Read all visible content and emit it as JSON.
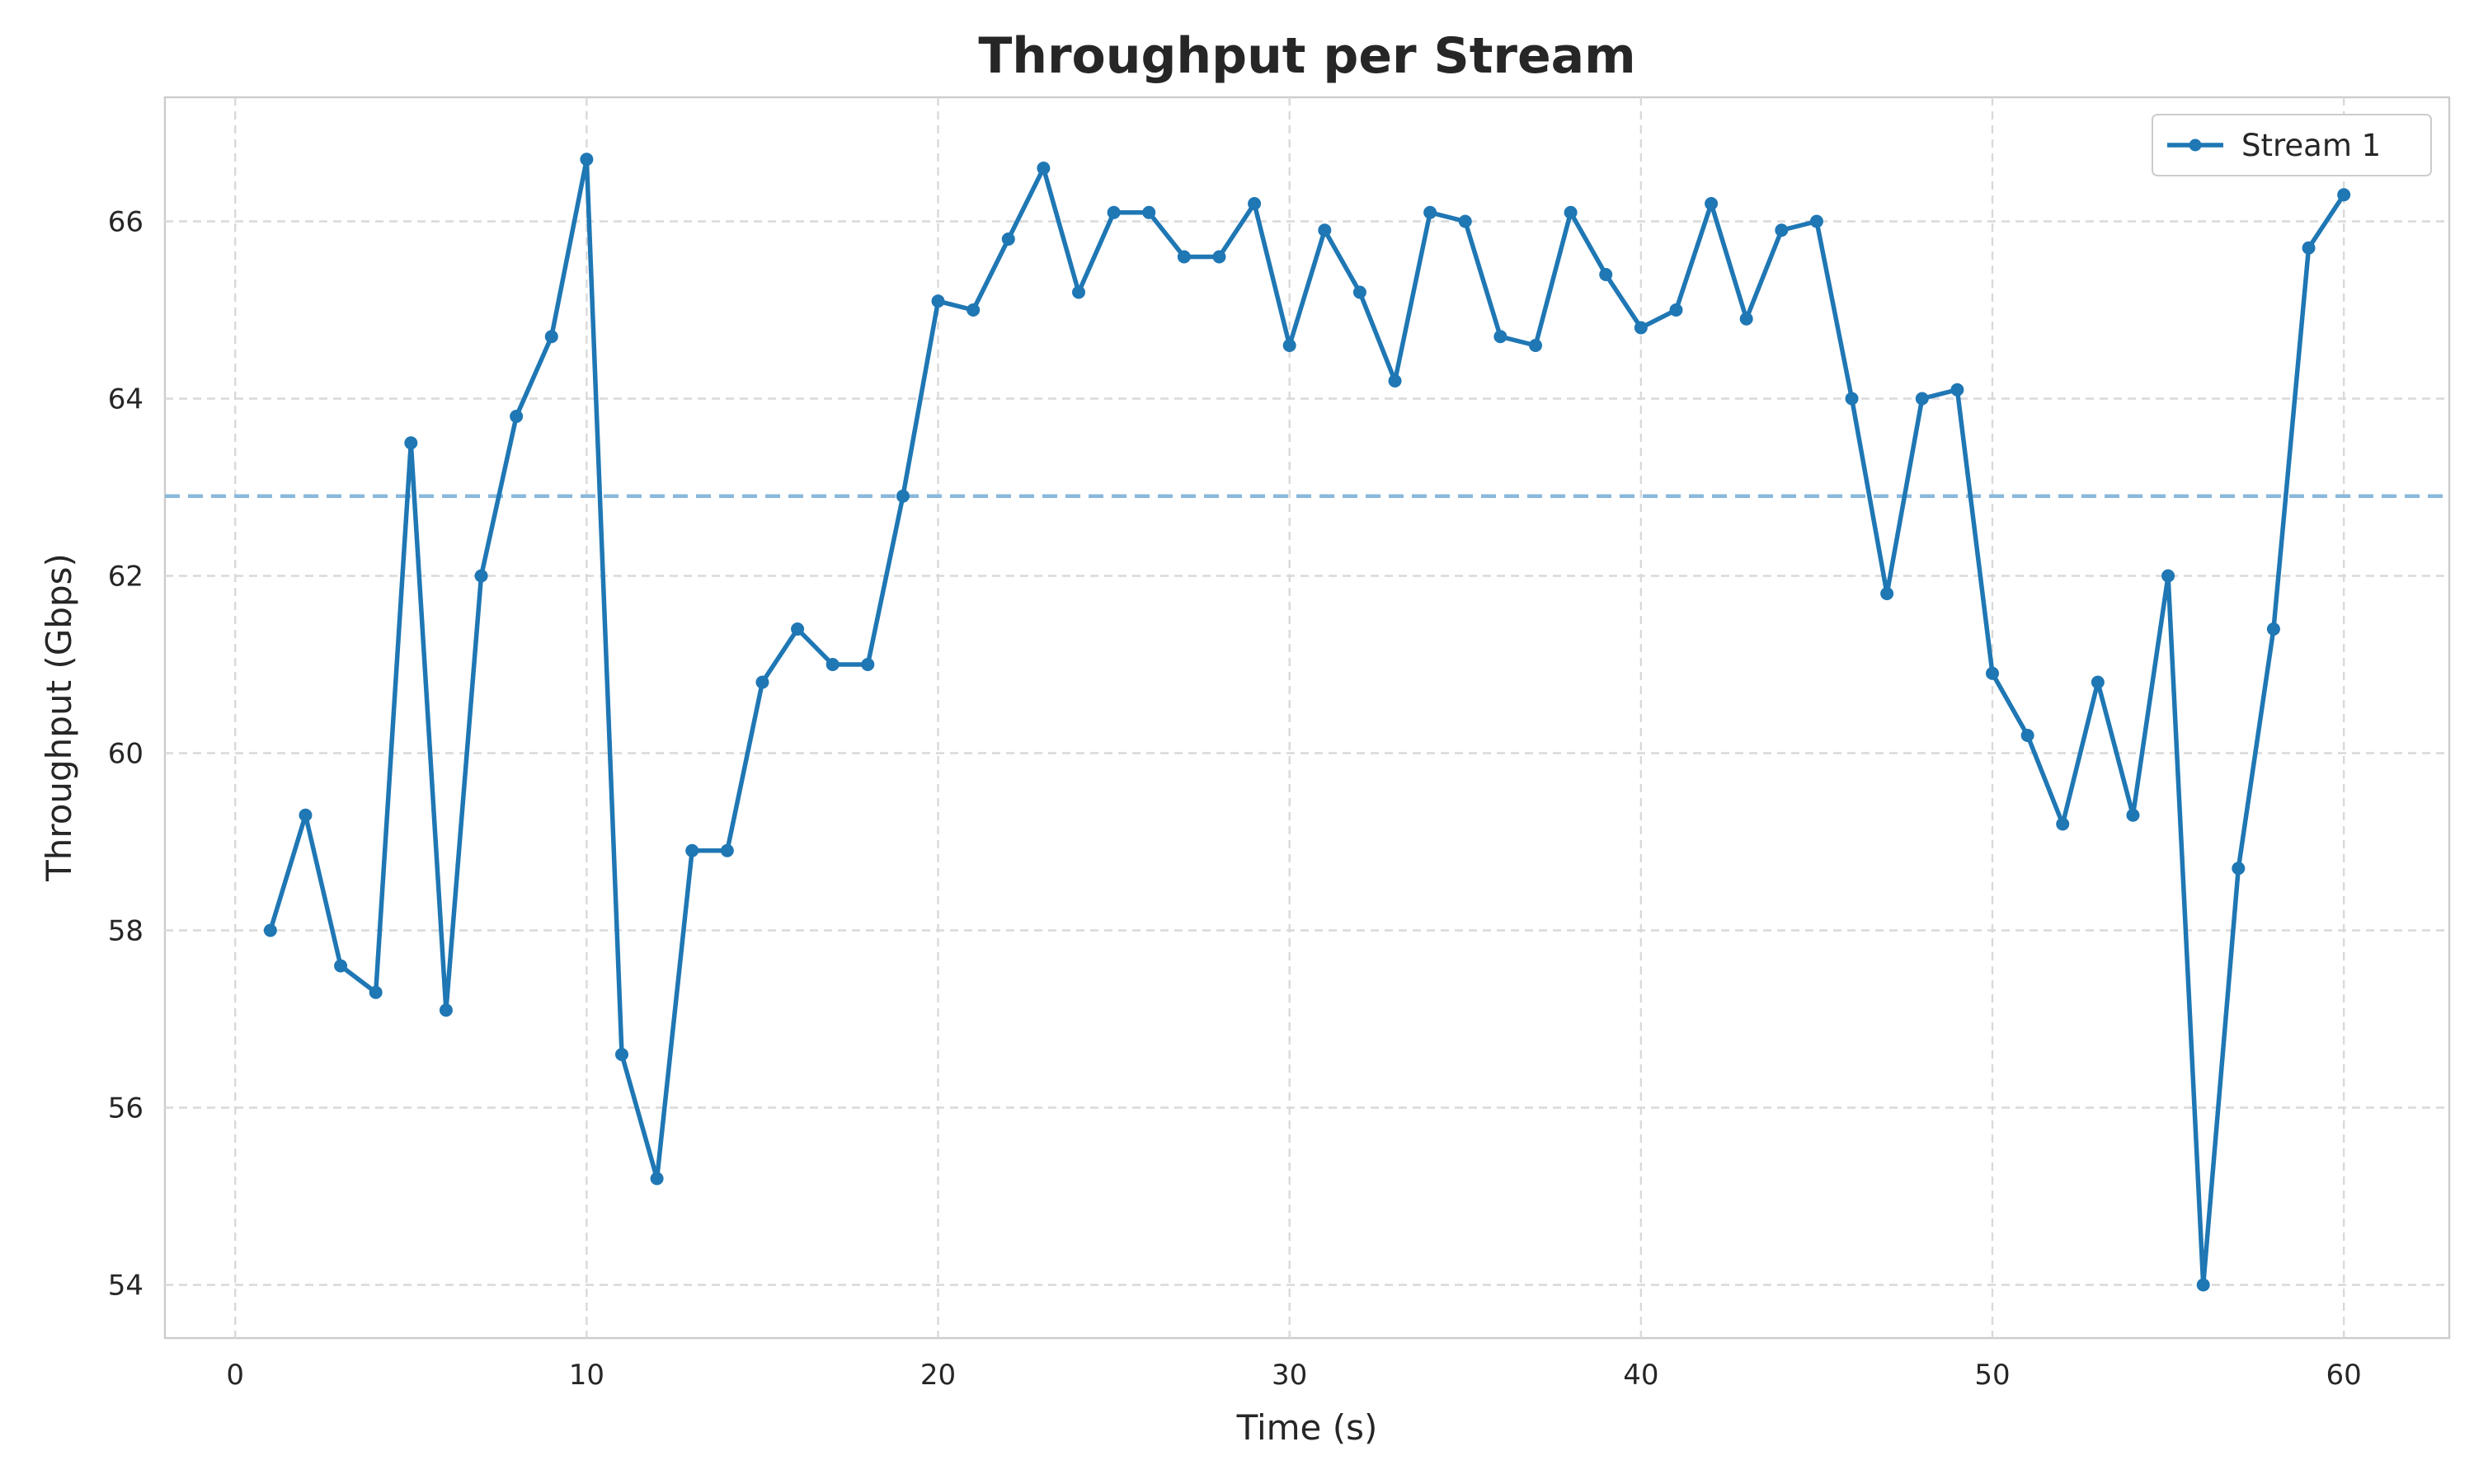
{
  "chart_data": {
    "type": "line",
    "title": "Throughput per Stream",
    "xlabel": "Time (s)",
    "ylabel": "Throughput (Gbps)",
    "xlim": [
      -2,
      63
    ],
    "ylim": [
      53.4,
      67.4
    ],
    "xticks": [
      0,
      10,
      20,
      30,
      40,
      50,
      60
    ],
    "yticks": [
      54,
      56,
      58,
      60,
      62,
      64,
      66
    ],
    "grid": true,
    "legend_position": "top-right",
    "reference_line": {
      "y": 62.9,
      "color": "#8ab8dc",
      "style": "dashed"
    },
    "series": [
      {
        "name": "Stream 1",
        "color": "#1f77b4",
        "marker": "circle",
        "x": [
          1,
          2,
          3,
          4,
          5,
          6,
          7,
          8,
          9,
          10,
          11,
          12,
          13,
          14,
          15,
          16,
          17,
          18,
          19,
          20,
          21,
          22,
          23,
          24,
          25,
          26,
          27,
          28,
          29,
          30,
          31,
          32,
          33,
          34,
          35,
          36,
          37,
          38,
          39,
          40,
          41,
          42,
          43,
          44,
          45,
          46,
          47,
          48,
          49,
          50,
          51,
          52,
          53,
          54,
          55,
          56,
          57,
          58,
          59,
          60
        ],
        "values": [
          58.0,
          59.3,
          57.6,
          57.3,
          63.5,
          57.1,
          62.0,
          63.8,
          64.7,
          66.7,
          56.6,
          55.2,
          58.9,
          58.9,
          60.8,
          61.4,
          61.0,
          61.0,
          62.9,
          65.1,
          65.0,
          65.8,
          66.6,
          65.2,
          66.1,
          66.1,
          65.6,
          65.6,
          66.2,
          64.6,
          65.9,
          65.2,
          64.2,
          66.1,
          66.0,
          64.7,
          64.6,
          66.1,
          65.4,
          64.8,
          65.0,
          66.2,
          64.9,
          65.9,
          66.0,
          64.0,
          61.8,
          64.0,
          64.1,
          60.9,
          60.2,
          59.2,
          60.8,
          59.3,
          62.0,
          54.0,
          58.7,
          61.4,
          65.7,
          66.3
        ]
      }
    ]
  }
}
